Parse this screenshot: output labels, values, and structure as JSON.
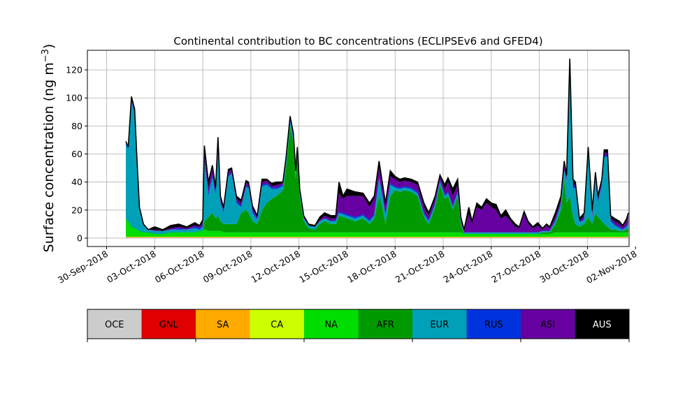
{
  "chart_data": {
    "type": "area",
    "title": "Continental contribution to BC concentrations (ECLIPSEv6 and GFED4)",
    "ylabel": "Surface concentration (ng m",
    "ylabel_sup": "−3",
    "ylabel_close": ")",
    "ylim": [
      -6,
      134
    ],
    "yticks": [
      0,
      20,
      40,
      60,
      80,
      100,
      120
    ],
    "xlim_days": [
      -1.2,
      32.6
    ],
    "xticks": [
      {
        "day": 0,
        "label": "30-Sep-2018"
      },
      {
        "day": 3,
        "label": "03-Oct-2018"
      },
      {
        "day": 6,
        "label": "06-Oct-2018"
      },
      {
        "day": 9,
        "label": "09-Oct-2018"
      },
      {
        "day": 12,
        "label": "12-Oct-2018"
      },
      {
        "day": 15,
        "label": "15-Oct-2018"
      },
      {
        "day": 18,
        "label": "18-Oct-2018"
      },
      {
        "day": 21,
        "label": "21-Oct-2018"
      },
      {
        "day": 24,
        "label": "24-Oct-2018"
      },
      {
        "day": 27,
        "label": "27-Oct-2018"
      },
      {
        "day": 30,
        "label": "30-Oct-2018"
      },
      {
        "day": 33,
        "label": "02-Nov-2018"
      }
    ],
    "grid": true,
    "series_order": [
      "OCE",
      "GNL",
      "SA",
      "CA",
      "NA",
      "AFR",
      "EUR",
      "RUS",
      "ASI",
      "AUS"
    ],
    "colors": {
      "OCE": "#cccccc",
      "GNL": "#e00000",
      "SA": "#ffaa00",
      "CA": "#ccff00",
      "NA": "#00dd00",
      "AFR": "#009a00",
      "EUR": "#00a0b8",
      "RUS": "#0033dd",
      "ASI": "#6600a0",
      "AUS": "#000000"
    },
    "stack_keypoints": [
      {
        "day": 1.2,
        "NA": 14,
        "AFR": 12,
        "EUR": 67,
        "RUS": 68,
        "ASI": 69,
        "AUS": 69
      },
      {
        "day": 1.35,
        "NA": 12,
        "AFR": 10,
        "EUR": 63,
        "RUS": 64,
        "ASI": 65,
        "AUS": 65
      },
      {
        "day": 1.55,
        "NA": 8,
        "AFR": 6,
        "EUR": 97,
        "RUS": 98,
        "ASI": 99,
        "AUS": 101
      },
      {
        "day": 1.75,
        "NA": 7,
        "AFR": 5,
        "EUR": 88,
        "RUS": 89,
        "ASI": 90,
        "AUS": 92
      },
      {
        "day": 1.9,
        "NA": 6,
        "AFR": 4,
        "EUR": 52,
        "RUS": 53,
        "ASI": 54,
        "AUS": 55
      },
      {
        "day": 2.05,
        "NA": 5,
        "AFR": 4,
        "EUR": 20,
        "RUS": 21,
        "ASI": 21,
        "AUS": 22
      },
      {
        "day": 2.3,
        "NA": 4,
        "AFR": 3,
        "EUR": 9,
        "RUS": 9,
        "ASI": 9,
        "AUS": 10
      },
      {
        "day": 2.6,
        "NA": 4,
        "AFR": 3,
        "EUR": 6,
        "RUS": 6,
        "ASI": 6,
        "AUS": 6
      },
      {
        "day": 3.0,
        "NA": 3,
        "AFR": 3,
        "EUR": 5,
        "RUS": 5,
        "ASI": 6,
        "AUS": 8
      },
      {
        "day": 3.5,
        "NA": 3,
        "AFR": 3,
        "EUR": 5,
        "RUS": 5,
        "ASI": 5,
        "AUS": 6
      },
      {
        "day": 4.0,
        "NA": 4,
        "AFR": 3,
        "EUR": 6,
        "RUS": 6,
        "ASI": 7,
        "AUS": 9
      },
      {
        "day": 4.5,
        "NA": 4,
        "AFR": 4,
        "EUR": 6,
        "RUS": 7,
        "ASI": 8,
        "AUS": 10
      },
      {
        "day": 5.0,
        "NA": 4,
        "AFR": 4,
        "EUR": 6,
        "RUS": 6,
        "ASI": 7,
        "AUS": 8
      },
      {
        "day": 5.5,
        "NA": 4,
        "AFR": 4,
        "EUR": 7,
        "RUS": 8,
        "ASI": 9,
        "AUS": 11
      },
      {
        "day": 5.8,
        "NA": 5,
        "AFR": 4,
        "EUR": 6,
        "RUS": 7,
        "ASI": 8,
        "AUS": 9
      },
      {
        "day": 6.0,
        "NA": 5,
        "AFR": 5,
        "EUR": 8,
        "RUS": 9,
        "ASI": 11,
        "AUS": 13
      },
      {
        "day": 6.1,
        "NA": 6,
        "AFR": 12,
        "EUR": 55,
        "RUS": 57,
        "ASI": 62,
        "AUS": 66
      },
      {
        "day": 6.35,
        "NA": 5,
        "AFR": 15,
        "EUR": 30,
        "RUS": 32,
        "ASI": 36,
        "AUS": 40
      },
      {
        "day": 6.6,
        "NA": 5,
        "AFR": 18,
        "EUR": 43,
        "RUS": 45,
        "ASI": 50,
        "AUS": 52
      },
      {
        "day": 6.8,
        "NA": 5,
        "AFR": 14,
        "EUR": 30,
        "RUS": 31,
        "ASI": 34,
        "AUS": 36
      },
      {
        "day": 6.95,
        "NA": 5,
        "AFR": 16,
        "EUR": 60,
        "RUS": 62,
        "ASI": 68,
        "AUS": 72
      },
      {
        "day": 7.1,
        "NA": 5,
        "AFR": 12,
        "EUR": 25,
        "RUS": 26,
        "ASI": 28,
        "AUS": 30
      },
      {
        "day": 7.3,
        "NA": 4,
        "AFR": 10,
        "EUR": 18,
        "RUS": 19,
        "ASI": 20,
        "AUS": 22
      },
      {
        "day": 7.6,
        "NA": 4,
        "AFR": 10,
        "EUR": 44,
        "RUS": 45,
        "ASI": 47,
        "AUS": 49
      },
      {
        "day": 7.8,
        "NA": 4,
        "AFR": 10,
        "EUR": 46,
        "RUS": 47,
        "ASI": 49,
        "AUS": 50
      },
      {
        "day": 8.1,
        "NA": 4,
        "AFR": 10,
        "EUR": 25,
        "RUS": 26,
        "ASI": 28,
        "AUS": 30
      },
      {
        "day": 8.4,
        "NA": 4,
        "AFR": 18,
        "EUR": 22,
        "RUS": 23,
        "ASI": 25,
        "AUS": 27
      },
      {
        "day": 8.7,
        "NA": 4,
        "AFR": 20,
        "EUR": 36,
        "RUS": 37,
        "ASI": 39,
        "AUS": 41
      },
      {
        "day": 8.85,
        "NA": 4,
        "AFR": 18,
        "EUR": 36,
        "RUS": 37,
        "ASI": 39,
        "AUS": 40
      },
      {
        "day": 9.1,
        "NA": 4,
        "AFR": 12,
        "EUR": 18,
        "RUS": 19,
        "ASI": 21,
        "AUS": 23
      },
      {
        "day": 9.4,
        "NA": 4,
        "AFR": 10,
        "EUR": 13,
        "RUS": 14,
        "ASI": 15,
        "AUS": 16
      },
      {
        "day": 9.7,
        "NA": 4,
        "AFR": 20,
        "EUR": 37,
        "RUS": 38,
        "ASI": 40,
        "AUS": 42
      },
      {
        "day": 10.0,
        "NA": 4,
        "AFR": 25,
        "EUR": 38,
        "RUS": 39,
        "ASI": 41,
        "AUS": 42
      },
      {
        "day": 10.3,
        "NA": 4,
        "AFR": 28,
        "EUR": 35,
        "RUS": 36,
        "ASI": 37,
        "AUS": 39
      },
      {
        "day": 10.6,
        "NA": 4,
        "AFR": 30,
        "EUR": 35,
        "RUS": 36,
        "ASI": 38,
        "AUS": 40
      },
      {
        "day": 11.0,
        "NA": 4,
        "AFR": 34,
        "EUR": 37,
        "RUS": 38,
        "ASI": 39,
        "AUS": 40
      },
      {
        "day": 11.2,
        "NA": 4,
        "AFR": 50,
        "EUR": 55,
        "RUS": 56,
        "ASI": 57,
        "AUS": 58
      },
      {
        "day": 11.45,
        "NA": 4,
        "AFR": 80,
        "EUR": 83,
        "RUS": 84,
        "ASI": 85,
        "AUS": 87
      },
      {
        "day": 11.65,
        "NA": 4,
        "AFR": 68,
        "EUR": 71,
        "RUS": 72,
        "ASI": 73,
        "AUS": 75
      },
      {
        "day": 11.8,
        "NA": 4,
        "AFR": 42,
        "EUR": 45,
        "RUS": 46,
        "ASI": 47,
        "AUS": 48
      },
      {
        "day": 11.9,
        "NA": 4,
        "AFR": 58,
        "EUR": 60,
        "RUS": 61,
        "ASI": 62,
        "AUS": 65
      },
      {
        "day": 12.05,
        "NA": 4,
        "AFR": 30,
        "EUR": 32,
        "RUS": 33,
        "ASI": 34,
        "AUS": 35
      },
      {
        "day": 12.3,
        "NA": 4,
        "AFR": 12,
        "EUR": 14,
        "RUS": 14,
        "ASI": 15,
        "AUS": 16
      },
      {
        "day": 12.6,
        "NA": 4,
        "AFR": 7,
        "EUR": 9,
        "RUS": 9,
        "ASI": 9,
        "AUS": 10
      },
      {
        "day": 13.0,
        "NA": 4,
        "AFR": 6,
        "EUR": 8,
        "RUS": 8,
        "ASI": 8,
        "AUS": 9
      },
      {
        "day": 13.3,
        "NA": 4,
        "AFR": 10,
        "EUR": 12,
        "RUS": 12,
        "ASI": 13,
        "AUS": 15
      },
      {
        "day": 13.6,
        "NA": 4,
        "AFR": 12,
        "EUR": 14,
        "RUS": 14,
        "ASI": 16,
        "AUS": 18
      },
      {
        "day": 14.0,
        "NA": 4,
        "AFR": 10,
        "EUR": 12,
        "RUS": 12,
        "ASI": 14,
        "AUS": 16
      },
      {
        "day": 14.3,
        "NA": 4,
        "AFR": 10,
        "EUR": 12,
        "RUS": 13,
        "ASI": 14,
        "AUS": 16
      },
      {
        "day": 14.5,
        "NA": 4,
        "AFR": 16,
        "EUR": 18,
        "RUS": 19,
        "ASI": 32,
        "AUS": 40
      },
      {
        "day": 14.75,
        "NA": 4,
        "AFR": 15,
        "EUR": 17,
        "RUS": 18,
        "ASI": 28,
        "AUS": 30
      },
      {
        "day": 15.0,
        "NA": 4,
        "AFR": 14,
        "EUR": 16,
        "RUS": 17,
        "ASI": 30,
        "AUS": 35
      },
      {
        "day": 15.5,
        "NA": 4,
        "AFR": 12,
        "EUR": 14,
        "RUS": 15,
        "ASI": 30,
        "AUS": 33
      },
      {
        "day": 16.0,
        "NA": 4,
        "AFR": 14,
        "EUR": 16,
        "RUS": 17,
        "ASI": 30,
        "AUS": 32
      },
      {
        "day": 16.4,
        "NA": 4,
        "AFR": 10,
        "EUR": 12,
        "RUS": 13,
        "ASI": 22,
        "AUS": 25
      },
      {
        "day": 16.7,
        "NA": 4,
        "AFR": 14,
        "EUR": 16,
        "RUS": 17,
        "ASI": 28,
        "AUS": 30
      },
      {
        "day": 17.0,
        "NA": 4,
        "AFR": 30,
        "EUR": 42,
        "RUS": 43,
        "ASI": 50,
        "AUS": 55
      },
      {
        "day": 17.2,
        "NA": 4,
        "AFR": 22,
        "EUR": 30,
        "RUS": 31,
        "ASI": 37,
        "AUS": 40
      },
      {
        "day": 17.4,
        "NA": 4,
        "AFR": 10,
        "EUR": 16,
        "RUS": 17,
        "ASI": 22,
        "AUS": 25
      },
      {
        "day": 17.7,
        "NA": 4,
        "AFR": 30,
        "EUR": 38,
        "RUS": 39,
        "ASI": 44,
        "AUS": 48
      },
      {
        "day": 18.0,
        "NA": 4,
        "AFR": 34,
        "EUR": 36,
        "RUS": 37,
        "ASI": 42,
        "AUS": 44
      },
      {
        "day": 18.3,
        "NA": 4,
        "AFR": 33,
        "EUR": 35,
        "RUS": 36,
        "ASI": 40,
        "AUS": 42
      },
      {
        "day": 18.6,
        "NA": 4,
        "AFR": 34,
        "EUR": 36,
        "RUS": 37,
        "ASI": 41,
        "AUS": 43
      },
      {
        "day": 19.0,
        "NA": 4,
        "AFR": 33,
        "EUR": 35,
        "RUS": 36,
        "ASI": 40,
        "AUS": 42
      },
      {
        "day": 19.4,
        "NA": 4,
        "AFR": 30,
        "EUR": 32,
        "RUS": 33,
        "ASI": 38,
        "AUS": 40
      },
      {
        "day": 19.8,
        "NA": 4,
        "AFR": 15,
        "EUR": 17,
        "RUS": 18,
        "ASI": 22,
        "AUS": 25
      },
      {
        "day": 20.1,
        "NA": 4,
        "AFR": 10,
        "EUR": 12,
        "RUS": 13,
        "ASI": 16,
        "AUS": 18
      },
      {
        "day": 20.5,
        "NA": 4,
        "AFR": 22,
        "EUR": 24,
        "RUS": 25,
        "ASI": 28,
        "AUS": 30
      },
      {
        "day": 20.8,
        "NA": 4,
        "AFR": 38,
        "EUR": 40,
        "RUS": 41,
        "ASI": 43,
        "AUS": 45
      },
      {
        "day": 21.1,
        "NA": 4,
        "AFR": 28,
        "EUR": 30,
        "RUS": 31,
        "ASI": 35,
        "AUS": 38
      },
      {
        "day": 21.3,
        "NA": 4,
        "AFR": 30,
        "EUR": 32,
        "RUS": 33,
        "ASI": 40,
        "AUS": 43
      },
      {
        "day": 21.6,
        "NA": 4,
        "AFR": 20,
        "EUR": 22,
        "RUS": 23,
        "ASI": 30,
        "AUS": 35
      },
      {
        "day": 21.9,
        "NA": 4,
        "AFR": 30,
        "EUR": 32,
        "RUS": 33,
        "ASI": 38,
        "AUS": 42
      },
      {
        "day": 22.1,
        "NA": 4,
        "AFR": 10,
        "EUR": 11,
        "RUS": 12,
        "ASI": 14,
        "AUS": 15
      },
      {
        "day": 22.3,
        "NA": 3,
        "AFR": 3,
        "EUR": 4,
        "RUS": 4,
        "ASI": 5,
        "AUS": 6
      },
      {
        "day": 22.6,
        "NA": 3,
        "AFR": 3,
        "EUR": 4,
        "RUS": 4,
        "ASI": 17,
        "AUS": 22
      },
      {
        "day": 22.8,
        "NA": 3,
        "AFR": 3,
        "EUR": 4,
        "RUS": 4,
        "ASI": 10,
        "AUS": 12
      },
      {
        "day": 23.1,
        "NA": 3,
        "AFR": 3,
        "EUR": 4,
        "RUS": 4,
        "ASI": 22,
        "AUS": 25
      },
      {
        "day": 23.4,
        "NA": 3,
        "AFR": 3,
        "EUR": 4,
        "RUS": 4,
        "ASI": 20,
        "AUS": 22
      },
      {
        "day": 23.7,
        "NA": 3,
        "AFR": 3,
        "EUR": 4,
        "RUS": 4,
        "ASI": 25,
        "AUS": 28
      },
      {
        "day": 24.0,
        "NA": 3,
        "AFR": 3,
        "EUR": 4,
        "RUS": 4,
        "ASI": 22,
        "AUS": 25
      },
      {
        "day": 24.3,
        "NA": 3,
        "AFR": 3,
        "EUR": 4,
        "RUS": 4,
        "ASI": 20,
        "AUS": 24
      },
      {
        "day": 24.6,
        "NA": 3,
        "AFR": 3,
        "EUR": 4,
        "RUS": 4,
        "ASI": 14,
        "AUS": 16
      },
      {
        "day": 24.9,
        "NA": 3,
        "AFR": 3,
        "EUR": 4,
        "RUS": 4,
        "ASI": 16,
        "AUS": 20
      },
      {
        "day": 25.2,
        "NA": 3,
        "AFR": 3,
        "EUR": 4,
        "RUS": 4,
        "ASI": 12,
        "AUS": 14
      },
      {
        "day": 25.5,
        "NA": 3,
        "AFR": 3,
        "EUR": 4,
        "RUS": 4,
        "ASI": 8,
        "AUS": 10
      },
      {
        "day": 25.75,
        "NA": 3,
        "AFR": 3,
        "EUR": 4,
        "RUS": 4,
        "ASI": 7,
        "AUS": 8
      },
      {
        "day": 26.05,
        "NA": 3,
        "AFR": 3,
        "EUR": 4,
        "RUS": 4,
        "ASI": 17,
        "AUS": 19
      },
      {
        "day": 26.3,
        "NA": 3,
        "AFR": 3,
        "EUR": 4,
        "RUS": 4,
        "ASI": 10,
        "AUS": 12
      },
      {
        "day": 26.6,
        "NA": 3,
        "AFR": 3,
        "EUR": 4,
        "RUS": 4,
        "ASI": 7,
        "AUS": 8
      },
      {
        "day": 26.9,
        "NA": 3,
        "AFR": 3,
        "EUR": 4,
        "RUS": 4,
        "ASI": 9,
        "AUS": 11
      },
      {
        "day": 27.2,
        "NA": 3,
        "AFR": 4,
        "EUR": 5,
        "RUS": 5,
        "ASI": 6,
        "AUS": 7
      },
      {
        "day": 27.45,
        "NA": 3,
        "AFR": 4,
        "EUR": 5,
        "RUS": 5,
        "ASI": 9,
        "AUS": 10
      },
      {
        "day": 27.65,
        "NA": 3,
        "AFR": 4,
        "EUR": 5,
        "RUS": 5,
        "ASI": 7,
        "AUS": 8
      },
      {
        "day": 28.0,
        "NA": 4,
        "AFR": 10,
        "EUR": 12,
        "RUS": 13,
        "ASI": 15,
        "AUS": 18
      },
      {
        "day": 28.35,
        "NA": 4,
        "AFR": 20,
        "EUR": 24,
        "RUS": 25,
        "ASI": 27,
        "AUS": 30
      },
      {
        "day": 28.55,
        "NA": 4,
        "AFR": 42,
        "EUR": 48,
        "RUS": 49,
        "ASI": 52,
        "AUS": 55
      },
      {
        "day": 28.7,
        "NA": 4,
        "AFR": 25,
        "EUR": 40,
        "RUS": 41,
        "ASI": 43,
        "AUS": 45
      },
      {
        "day": 28.9,
        "NA": 4,
        "AFR": 30,
        "EUR": 118,
        "RUS": 120,
        "ASI": 122,
        "AUS": 128
      },
      {
        "day": 29.1,
        "NA": 4,
        "AFR": 15,
        "EUR": 35,
        "RUS": 36,
        "ASI": 38,
        "AUS": 42
      },
      {
        "day": 29.25,
        "NA": 4,
        "AFR": 10,
        "EUR": 36,
        "RUS": 37,
        "ASI": 38,
        "AUS": 40
      },
      {
        "day": 29.5,
        "NA": 4,
        "AFR": 8,
        "EUR": 11,
        "RUS": 11,
        "ASI": 12,
        "AUS": 14
      },
      {
        "day": 29.8,
        "NA": 4,
        "AFR": 10,
        "EUR": 13,
        "RUS": 14,
        "ASI": 16,
        "AUS": 18
      },
      {
        "day": 30.05,
        "NA": 4,
        "AFR": 15,
        "EUR": 60,
        "RUS": 61,
        "ASI": 63,
        "AUS": 65
      },
      {
        "day": 30.3,
        "NA": 4,
        "AFR": 10,
        "EUR": 14,
        "RUS": 15,
        "ASI": 17,
        "AUS": 20
      },
      {
        "day": 30.5,
        "NA": 4,
        "AFR": 18,
        "EUR": 42,
        "RUS": 43,
        "ASI": 45,
        "AUS": 47
      },
      {
        "day": 30.65,
        "NA": 4,
        "AFR": 15,
        "EUR": 25,
        "RUS": 26,
        "ASI": 28,
        "AUS": 30
      },
      {
        "day": 30.9,
        "NA": 4,
        "AFR": 12,
        "EUR": 37,
        "RUS": 38,
        "ASI": 40,
        "AUS": 42
      },
      {
        "day": 31.05,
        "NA": 4,
        "AFR": 10,
        "EUR": 58,
        "RUS": 59,
        "ASI": 61,
        "AUS": 63
      },
      {
        "day": 31.25,
        "NA": 4,
        "AFR": 8,
        "EUR": 58,
        "RUS": 59,
        "ASI": 61,
        "AUS": 63
      },
      {
        "day": 31.45,
        "NA": 4,
        "AFR": 6,
        "EUR": 12,
        "RUS": 13,
        "ASI": 14,
        "AUS": 16
      },
      {
        "day": 31.7,
        "NA": 4,
        "AFR": 6,
        "EUR": 9,
        "RUS": 10,
        "ASI": 12,
        "AUS": 14
      },
      {
        "day": 32.0,
        "NA": 4,
        "AFR": 5,
        "EUR": 7,
        "RUS": 8,
        "ASI": 10,
        "AUS": 12
      },
      {
        "day": 32.2,
        "NA": 4,
        "AFR": 5,
        "EUR": 6,
        "RUS": 6,
        "ASI": 8,
        "AUS": 9
      },
      {
        "day": 32.45,
        "NA": 4,
        "AFR": 6,
        "EUR": 8,
        "RUS": 9,
        "ASI": 12,
        "AUS": 14
      },
      {
        "day": 32.55,
        "NA": 4,
        "AFR": 8,
        "EUR": 10,
        "RUS": 11,
        "ASI": 15,
        "AUS": 18
      }
    ],
    "base_layers": {
      "OCE": 0.3,
      "GNL": 0.4,
      "SA": 0.7,
      "CA": 1.0
    },
    "legend_placement": "bottom",
    "legend": [
      {
        "name": "OCE",
        "color": "#cccccc",
        "text_color": "#000000"
      },
      {
        "name": "GNL",
        "color": "#e00000",
        "text_color": "#000000"
      },
      {
        "name": "SA",
        "color": "#ffaa00",
        "text_color": "#000000"
      },
      {
        "name": "CA",
        "color": "#ccff00",
        "text_color": "#000000"
      },
      {
        "name": "NA",
        "color": "#00dd00",
        "text_color": "#000000"
      },
      {
        "name": "AFR",
        "color": "#009a00",
        "text_color": "#000000"
      },
      {
        "name": "EUR",
        "color": "#00a0b8",
        "text_color": "#000000"
      },
      {
        "name": "RUS",
        "color": "#0033dd",
        "text_color": "#000000"
      },
      {
        "name": "ASI",
        "color": "#6600a0",
        "text_color": "#000000"
      },
      {
        "name": "AUS",
        "color": "#000000",
        "text_color": "#ffffff"
      }
    ]
  }
}
